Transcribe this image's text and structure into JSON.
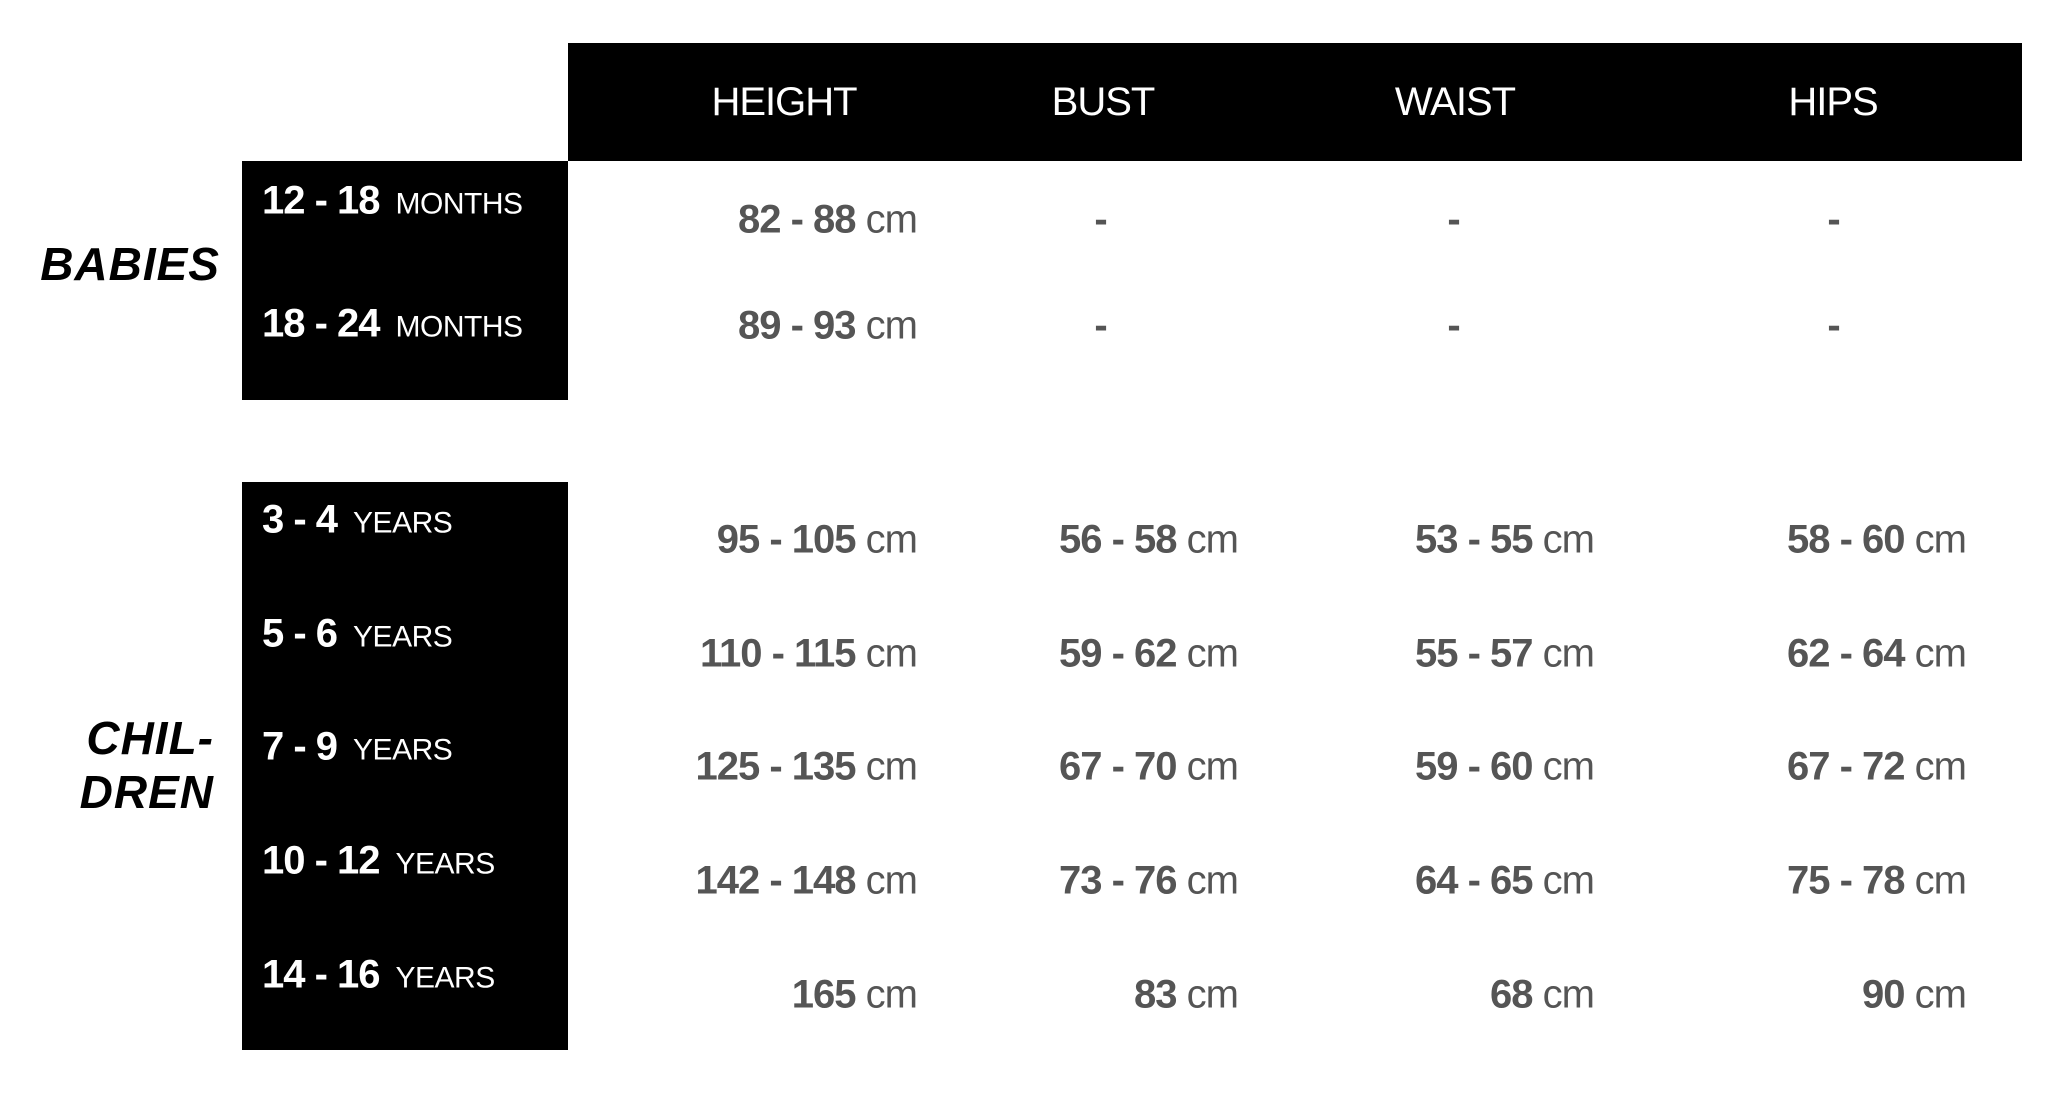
{
  "header": {
    "columns": [
      "HEIGHT",
      "BUST",
      "WAIST",
      "HIPS"
    ]
  },
  "groups": [
    {
      "label": "BABIES",
      "rows": [
        {
          "range": "12 - 18",
          "unit": "MONTHS",
          "height": {
            "num": "82 - 88",
            "unit": "cm"
          },
          "bust": "-",
          "waist": "-",
          "hips": "-"
        },
        {
          "range": "18 - 24",
          "unit": "MONTHS",
          "height": {
            "num": "89 - 93",
            "unit": "cm"
          },
          "bust": "-",
          "waist": "-",
          "hips": "-"
        }
      ]
    },
    {
      "label_line1": "CHIL-",
      "label_line2": "DREN",
      "rows": [
        {
          "range": "3 - 4",
          "unit": "YEARS",
          "height": {
            "num": "95 - 105",
            "unit": "cm"
          },
          "bust": {
            "num": "56 - 58",
            "unit": "cm"
          },
          "waist": {
            "num": "53 - 55",
            "unit": "cm"
          },
          "hips": {
            "num": "58 - 60",
            "unit": "cm"
          }
        },
        {
          "range": "5 - 6",
          "unit": "YEARS",
          "height": {
            "num": "110 - 115",
            "unit": "cm"
          },
          "bust": {
            "num": "59 - 62",
            "unit": "cm"
          },
          "waist": {
            "num": "55 - 57",
            "unit": "cm"
          },
          "hips": {
            "num": "62 - 64",
            "unit": "cm"
          }
        },
        {
          "range": "7 - 9",
          "unit": "YEARS",
          "height": {
            "num": "125 - 135",
            "unit": "cm"
          },
          "bust": {
            "num": "67 - 70",
            "unit": "cm"
          },
          "waist": {
            "num": "59 - 60",
            "unit": "cm"
          },
          "hips": {
            "num": "67 - 72",
            "unit": "cm"
          }
        },
        {
          "range": "10 - 12",
          "unit": "YEARS",
          "height": {
            "num": "142 - 148",
            "unit": "cm"
          },
          "bust": {
            "num": "73 - 76",
            "unit": "cm"
          },
          "waist": {
            "num": "64 - 65",
            "unit": "cm"
          },
          "hips": {
            "num": "75 - 78",
            "unit": "cm"
          }
        },
        {
          "range": "14 - 16",
          "unit": "YEARS",
          "height": {
            "num": "165",
            "unit": "cm"
          },
          "bust": {
            "num": "83",
            "unit": "cm"
          },
          "waist": {
            "num": "68",
            "unit": "cm"
          },
          "hips": {
            "num": "90",
            "unit": "cm"
          }
        }
      ]
    }
  ],
  "colors": {
    "header_bg": "#000000",
    "value_text": "#555555"
  }
}
